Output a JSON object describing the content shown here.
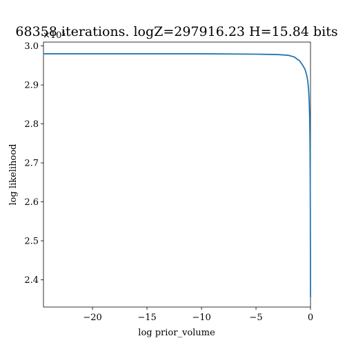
{
  "chart_data": {
    "type": "line",
    "title": "68358 iterations. logZ=297916.23 H=15.84 bits",
    "xlabel": "log prior_volume",
    "ylabel": "log likelihood",
    "y_multiplier_label": "×10⁵",
    "xlim": [
      -24.5,
      0
    ],
    "ylim": [
      2.33,
      3.01
    ],
    "xticks": [
      -20,
      -15,
      -10,
      -5,
      0
    ],
    "xtick_labels": [
      "−20",
      "−15",
      "−10",
      "−5",
      "0"
    ],
    "yticks": [
      2.4,
      2.5,
      2.6,
      2.7,
      2.8,
      2.9,
      3.0
    ],
    "ytick_labels": [
      "2.4",
      "2.5",
      "2.6",
      "2.7",
      "2.8",
      "2.9",
      "3.0"
    ],
    "grid": false,
    "series": [
      {
        "color": "#1f77b4",
        "x": [
          -24.5,
          -20,
          -15,
          -10,
          -5,
          -3,
          -2,
          -1.5,
          -1.0,
          -0.7,
          -0.5,
          -0.35,
          -0.25,
          -0.18,
          -0.12,
          -0.08,
          -0.05,
          -0.03,
          -0.015,
          -0.005,
          0
        ],
        "y": [
          2.98,
          2.98,
          2.98,
          2.98,
          2.979,
          2.978,
          2.976,
          2.972,
          2.962,
          2.95,
          2.94,
          2.925,
          2.91,
          2.89,
          2.86,
          2.82,
          2.76,
          2.68,
          2.57,
          2.45,
          2.355
        ]
      }
    ]
  }
}
